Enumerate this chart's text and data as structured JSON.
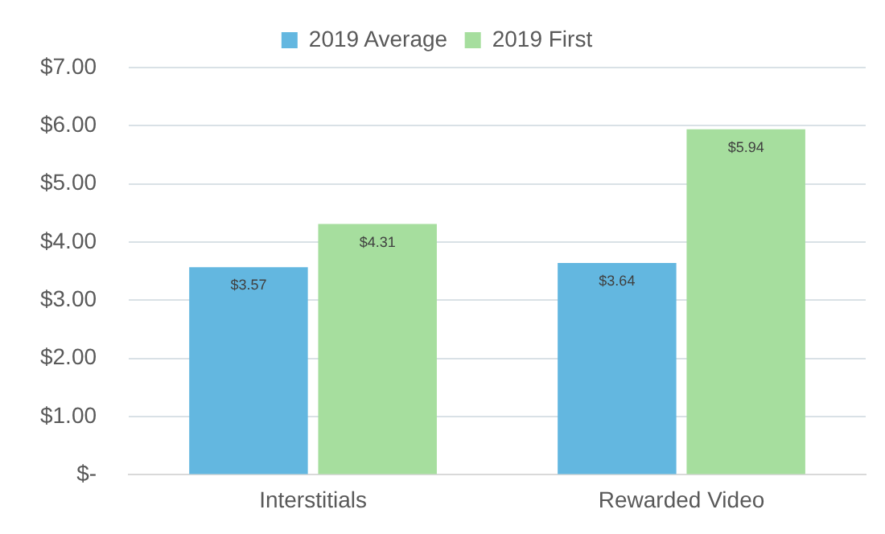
{
  "chart_data": {
    "type": "bar",
    "categories": [
      "Interstitials",
      "Rewarded Video"
    ],
    "series": [
      {
        "name": "2019 Average",
        "color": "#63b7e0",
        "values": [
          3.57,
          3.64
        ]
      },
      {
        "name": "2019 First",
        "color": "#a6de9e",
        "values": [
          4.31,
          5.94
        ]
      }
    ],
    "ylim": [
      0,
      7
    ],
    "yticks": [
      {
        "value": 0,
        "label": "$-"
      },
      {
        "value": 1,
        "label": "$1.00"
      },
      {
        "value": 2,
        "label": "$2.00"
      },
      {
        "value": 3,
        "label": "$3.00"
      },
      {
        "value": 4,
        "label": "$4.00"
      },
      {
        "value": 5,
        "label": "$5.00"
      },
      {
        "value": 6,
        "label": "$6.00"
      },
      {
        "value": 7,
        "label": "$7.00"
      }
    ],
    "value_labels": [
      [
        "$3.57",
        "$3.64"
      ],
      [
        "$4.31",
        "$5.94"
      ]
    ],
    "grid": "y",
    "legend": "top"
  }
}
